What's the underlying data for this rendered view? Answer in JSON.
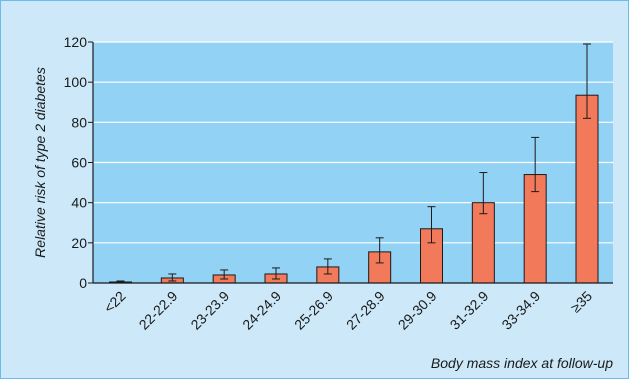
{
  "chart_data": {
    "type": "bar",
    "title": "",
    "xlabel": "Body mass index at follow-up",
    "ylabel": "Relative risk of type 2 diabetes",
    "categories": [
      "<22",
      "22-22.9",
      "23-23.9",
      "24-24.9",
      "25-26.9",
      "27-28.9",
      "29-30.9",
      "31-32.9",
      "33-34.9",
      "≥35"
    ],
    "values": [
      0.5,
      2.5,
      4,
      4.5,
      8,
      15.5,
      27,
      40,
      54,
      93.5
    ],
    "error_low": [
      0,
      1,
      2,
      2,
      4.5,
      10,
      20,
      34.5,
      45.5,
      82
    ],
    "error_high": [
      1,
      4.5,
      6.5,
      7.5,
      12,
      22.5,
      38,
      55,
      72.5,
      119
    ],
    "ylim": [
      0,
      120
    ],
    "yticks": [
      0,
      20,
      40,
      60,
      80,
      100,
      120
    ],
    "grid": true,
    "colors": {
      "plot_background": "#92d2f5",
      "figure_background": "#cde9f9",
      "bar_fill": "#f27a5b",
      "grid": "#ffffff",
      "border": "#6bbde9",
      "ink": "#1a1a1a"
    }
  }
}
